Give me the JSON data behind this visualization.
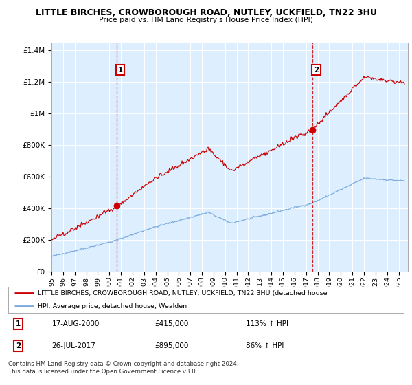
{
  "title": "LITTLE BIRCHES, CROWBOROUGH ROAD, NUTLEY, UCKFIELD, TN22 3HU",
  "subtitle": "Price paid vs. HM Land Registry's House Price Index (HPI)",
  "legend_red": "LITTLE BIRCHES, CROWBOROUGH ROAD, NUTLEY, UCKFIELD, TN22 3HU (detached house",
  "legend_blue": "HPI: Average price, detached house, Wealden",
  "transaction1_date": "17-AUG-2000",
  "transaction1_price": "£415,000",
  "transaction1_hpi": "113% ↑ HPI",
  "transaction2_date": "26-JUL-2017",
  "transaction2_price": "£895,000",
  "transaction2_hpi": "86% ↑ HPI",
  "footer": "Contains HM Land Registry data © Crown copyright and database right 2024.\nThis data is licensed under the Open Government Licence v3.0.",
  "red_color": "#cc0000",
  "blue_color": "#7aaadd",
  "bg_color": "#ddeeff",
  "grid_color": "#ffffff",
  "ylim_max": 1450000,
  "xlim_start": 1995.0,
  "xlim_end": 2025.8,
  "transaction1_x": 2000.62,
  "transaction1_y": 415000,
  "transaction2_x": 2017.56,
  "transaction2_y": 895000,
  "yticks": [
    0,
    200000,
    400000,
    600000,
    800000,
    1000000,
    1200000,
    1400000
  ]
}
